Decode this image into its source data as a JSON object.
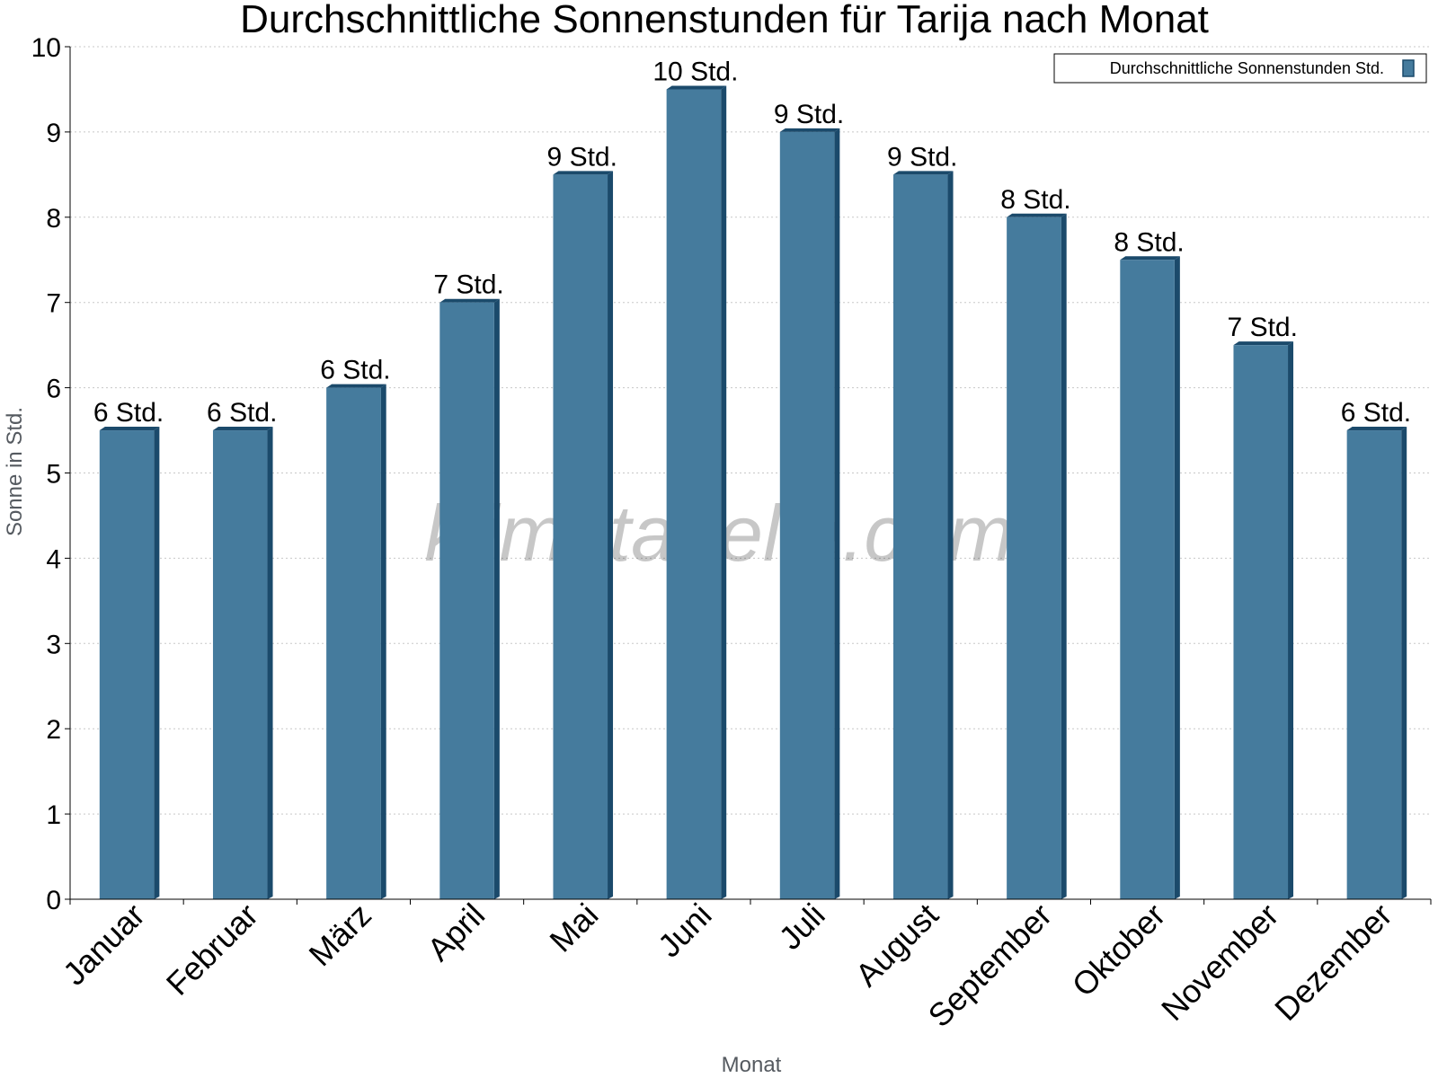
{
  "chart_data": {
    "type": "bar",
    "title": "Durchschnittliche Sonnenstunden für Tarija nach Monat",
    "xlabel": "Monat",
    "ylabel": "Sonne in Std.",
    "ylim": [
      0,
      10
    ],
    "yticks": [
      0,
      1,
      2,
      3,
      4,
      5,
      6,
      7,
      8,
      9,
      10
    ],
    "grid": true,
    "legend_position": "top-right",
    "categories": [
      "Januar",
      "Februar",
      "März",
      "April",
      "Mai",
      "Juni",
      "Juli",
      "August",
      "September",
      "Oktober",
      "November",
      "Dezember"
    ],
    "series": [
      {
        "name": "Durchschnittliche Sonnenstunden Std.",
        "values": [
          5.5,
          5.5,
          6,
          7,
          8.5,
          9.5,
          9,
          8.5,
          8,
          7.5,
          6.5,
          5.5
        ],
        "labels": [
          "6 Std.",
          "6 Std.",
          "6 Std.",
          "7 Std.",
          "9 Std.",
          "10 Std.",
          "9 Std.",
          "9 Std.",
          "8 Std.",
          "8 Std.",
          "7 Std.",
          "6 Std."
        ],
        "color": "#457b9d",
        "side_color": "#1b4a6b"
      }
    ],
    "watermark": "klimatabelle.com"
  }
}
